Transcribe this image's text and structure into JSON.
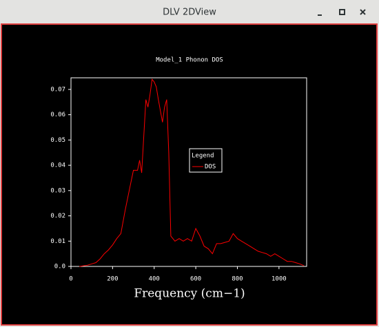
{
  "window": {
    "title": "DLV 2DView"
  },
  "chart_data": {
    "type": "line",
    "title": "Model_1 Phonon DOS",
    "x_label": "Frequency (cm−1)",
    "legend_title": "Legend",
    "x": [
      40,
      80,
      100,
      120,
      140,
      160,
      180,
      200,
      220,
      240,
      260,
      280,
      300,
      320,
      330,
      340,
      360,
      370,
      380,
      390,
      400,
      410,
      420,
      440,
      450,
      460,
      470,
      480,
      490,
      500,
      520,
      540,
      560,
      580,
      600,
      620,
      640,
      660,
      680,
      700,
      720,
      740,
      760,
      780,
      800,
      820,
      840,
      860,
      880,
      900,
      920,
      940,
      960,
      980,
      1000,
      1020,
      1040,
      1060,
      1080,
      1100,
      1120
    ],
    "series": [
      {
        "name": "DOS",
        "color": "#ff0000",
        "values": [
          0,
          0.0005,
          0.001,
          0.0015,
          0.003,
          0.005,
          0.0065,
          0.0085,
          0.011,
          0.013,
          0.022,
          0.03,
          0.038,
          0.038,
          0.042,
          0.037,
          0.066,
          0.063,
          0.068,
          0.074,
          0.073,
          0.071,
          0.066,
          0.057,
          0.063,
          0.066,
          0.045,
          0.012,
          0.011,
          0.01,
          0.011,
          0.01,
          0.011,
          0.01,
          0.015,
          0.012,
          0.008,
          0.007,
          0.005,
          0.009,
          0.009,
          0.0095,
          0.01,
          0.013,
          0.011,
          0.01,
          0.009,
          0.008,
          0.007,
          0.006,
          0.0055,
          0.005,
          0.004,
          0.005,
          0.004,
          0.003,
          0.002,
          0.002,
          0.0015,
          0.001,
          0.0003
        ]
      }
    ],
    "xlim": [
      0,
      1133
    ],
    "xticks": [
      0,
      200,
      400,
      600,
      800,
      1000
    ],
    "ylim": [
      0,
      0.0746
    ],
    "yticks": [
      {
        "value": 0,
        "label": "0.0"
      },
      0.01,
      0.02,
      0.03,
      0.04,
      0.05,
      0.06,
      0.07
    ]
  }
}
